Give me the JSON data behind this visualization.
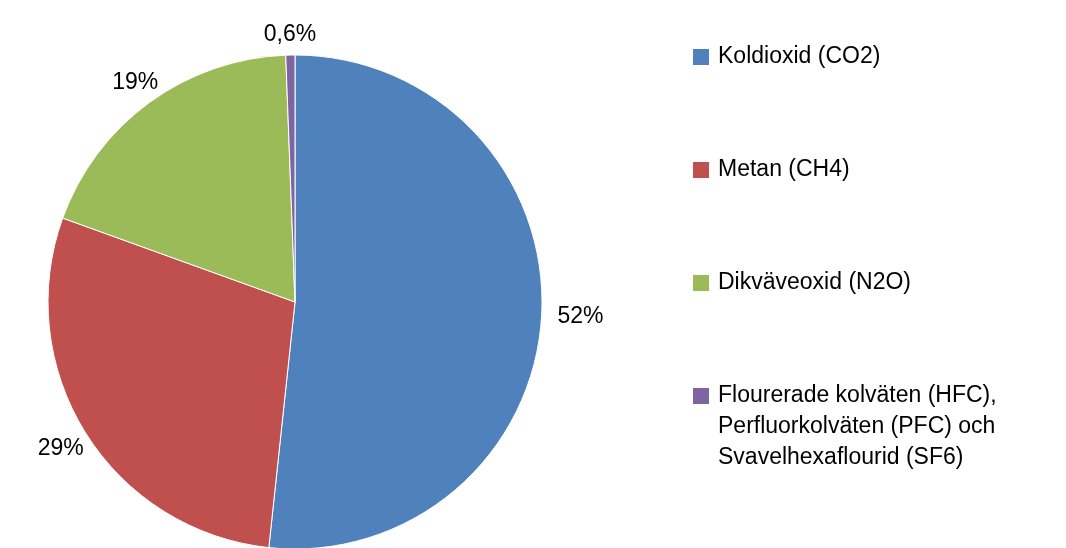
{
  "chart_data": {
    "type": "pie",
    "categories": [
      "Koldioxid (CO2)",
      "Metan (CH4)",
      "Dikväveoxid (N2O)",
      "Flourerade kolväten (HFC), Perfluorkolväten (PFC) och Svavelhexaflourid (SF6)"
    ],
    "values": [
      52,
      29,
      19,
      0.6
    ],
    "value_labels": [
      "52%",
      "29%",
      "19%",
      "0,6%"
    ],
    "colors": [
      "#4f81bd",
      "#c0504d",
      "#9bbb59",
      "#8064a2"
    ],
    "legend": "right"
  }
}
